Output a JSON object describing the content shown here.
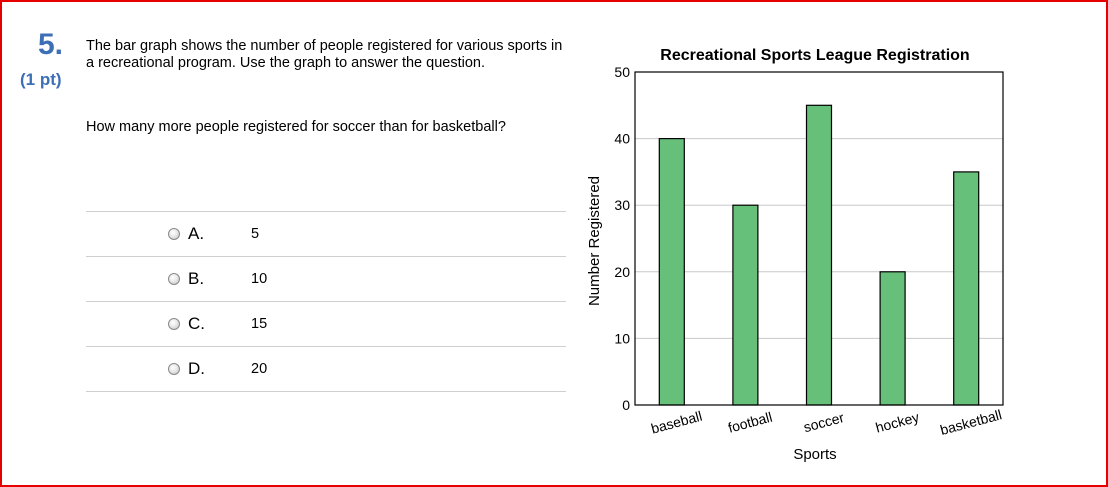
{
  "question": {
    "number": "5.",
    "points": "(1 pt)",
    "prompt": "The bar graph shows the number of people registered for various sports in a recreational program. Use the graph to answer the question.",
    "text": "How many more people registered for soccer than for basketball?"
  },
  "choices": [
    {
      "letter": "A.",
      "value": "5"
    },
    {
      "letter": "B.",
      "value": "10"
    },
    {
      "letter": "C.",
      "value": "15"
    },
    {
      "letter": "D.",
      "value": "20"
    }
  ],
  "colors": {
    "bar": "#66c07a",
    "frame": "#e60000",
    "accent": "#3d6fb6"
  },
  "chart_data": {
    "type": "bar",
    "title": "Recreational Sports League Registration",
    "xlabel": "Sports",
    "ylabel": "Number Registered",
    "categories": [
      "baseball",
      "football",
      "soccer",
      "hockey",
      "basketball"
    ],
    "values": [
      40,
      30,
      45,
      20,
      35
    ],
    "ylim": [
      0,
      50
    ],
    "yticks": [
      0,
      10,
      20,
      30,
      40,
      50
    ],
    "grid": true,
    "legend": "none"
  }
}
